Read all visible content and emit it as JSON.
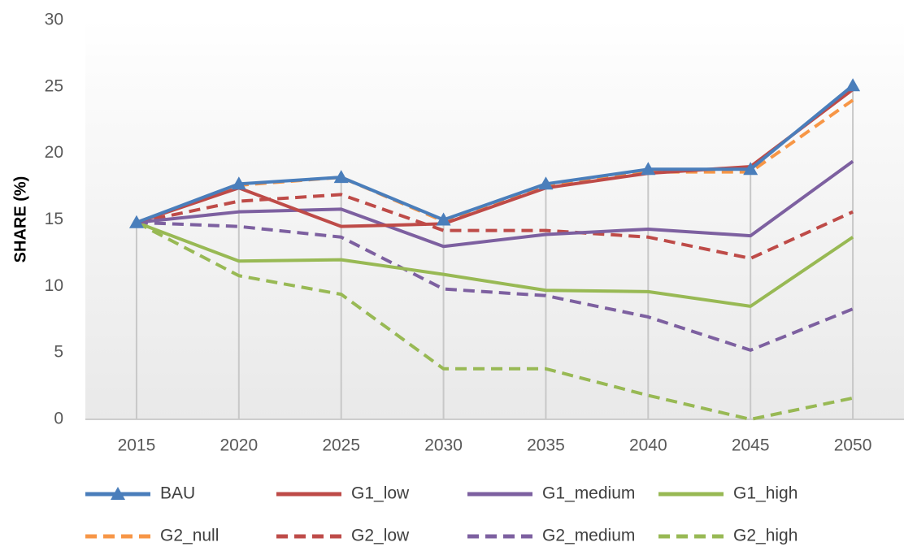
{
  "chart_data": {
    "type": "line",
    "y_label": "SHARE (%)",
    "categories": [
      "2015",
      "2020",
      "2025",
      "2030",
      "2035",
      "2040",
      "2045",
      "2050"
    ],
    "ylim": [
      0,
      30
    ],
    "yticks": [
      0,
      5,
      10,
      15,
      20,
      25,
      30
    ],
    "series": [
      {
        "name": "BAU",
        "color": "#4a7ebb",
        "dashed": false,
        "marker": "triangle",
        "values": [
          14.8,
          17.7,
          18.2,
          15.0,
          17.7,
          18.8,
          18.8,
          25.1
        ]
      },
      {
        "name": "G1_low",
        "color": "#be4b48",
        "dashed": false,
        "values": [
          14.8,
          17.4,
          14.5,
          14.7,
          17.4,
          18.5,
          19.0,
          24.8
        ]
      },
      {
        "name": "G1_medium",
        "color": "#7d60a0",
        "dashed": false,
        "values": [
          14.8,
          15.6,
          15.8,
          13.0,
          13.9,
          14.3,
          13.8,
          19.4
        ]
      },
      {
        "name": "G1_high",
        "color": "#98b954",
        "dashed": false,
        "values": [
          14.8,
          11.9,
          12.0,
          10.9,
          9.7,
          9.6,
          8.5,
          13.7
        ]
      },
      {
        "name": "G2_null",
        "color": "#f79646",
        "dashed": true,
        "values": [
          14.8,
          17.6,
          18.2,
          14.9,
          17.6,
          18.6,
          18.6,
          24.0
        ]
      },
      {
        "name": "G2_low",
        "color": "#be4b48",
        "dashed": true,
        "values": [
          14.8,
          16.4,
          16.9,
          14.2,
          14.2,
          13.7,
          12.1,
          15.6
        ]
      },
      {
        "name": "G2_medium",
        "color": "#7d60a0",
        "dashed": true,
        "values": [
          14.8,
          14.5,
          13.7,
          9.8,
          9.3,
          7.7,
          5.2,
          8.3
        ]
      },
      {
        "name": "G2_high",
        "color": "#98b954",
        "dashed": true,
        "values": [
          14.8,
          10.8,
          9.4,
          3.8,
          3.8,
          1.8,
          0,
          1.6
        ]
      }
    ]
  }
}
